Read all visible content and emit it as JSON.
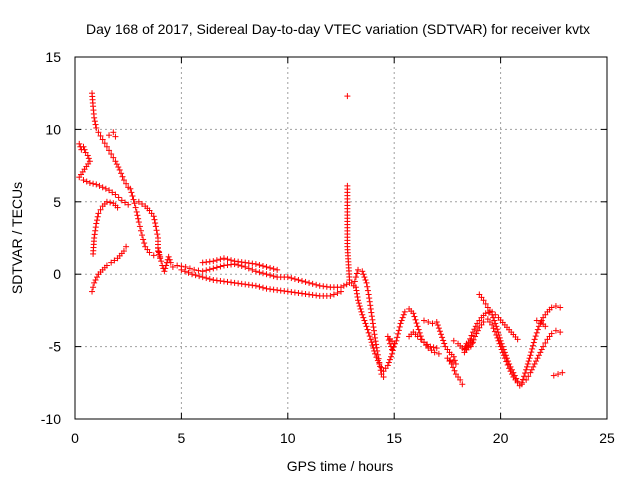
{
  "chart_data": {
    "type": "scatter",
    "title": "Day 168 of 2017, Sidereal Day-to-day VTEC variation (SDTVAR) for receiver kvtx",
    "xlabel": "GPS time / hours",
    "ylabel": "SDTVAR / TECUs",
    "xlim": [
      0,
      25
    ],
    "ylim": [
      -10,
      15
    ],
    "xticks": [
      "0",
      "5",
      "10",
      "15",
      "20",
      "25"
    ],
    "yticks": [
      "-10",
      "-5",
      "0",
      "5",
      "10",
      "15"
    ],
    "grid": true,
    "series": [
      {
        "name": "SDTVAR",
        "marker": "+",
        "color": "#ff0000",
        "points": [
          [
            0.2,
            9.0
          ],
          [
            0.3,
            8.6
          ],
          [
            0.4,
            8.8
          ],
          [
            0.5,
            8.4
          ],
          [
            0.6,
            8.2
          ],
          [
            0.7,
            7.8
          ],
          [
            0.2,
            6.7
          ],
          [
            0.4,
            6.5
          ],
          [
            0.7,
            6.3
          ],
          [
            1.0,
            6.2
          ],
          [
            1.3,
            6.0
          ],
          [
            1.6,
            5.8
          ],
          [
            1.9,
            5.5
          ],
          [
            2.2,
            5.1
          ],
          [
            2.5,
            4.8
          ],
          [
            0.8,
            12.5
          ],
          [
            0.85,
            11.6
          ],
          [
            0.9,
            10.8
          ],
          [
            1.0,
            10.1
          ],
          [
            1.1,
            9.8
          ],
          [
            1.3,
            9.3
          ],
          [
            1.5,
            8.8
          ],
          [
            1.7,
            8.3
          ],
          [
            1.9,
            7.8
          ],
          [
            2.1,
            7.2
          ],
          [
            2.3,
            6.5
          ],
          [
            2.5,
            6.0
          ],
          [
            1.6,
            9.6
          ],
          [
            1.8,
            9.8
          ],
          [
            1.9,
            9.5
          ],
          [
            0.85,
            1.4
          ],
          [
            0.9,
            2.5
          ],
          [
            1.0,
            3.5
          ],
          [
            1.1,
            4.2
          ],
          [
            1.3,
            4.7
          ],
          [
            1.5,
            5.0
          ],
          [
            1.8,
            4.9
          ],
          [
            2.0,
            4.6
          ],
          [
            0.8,
            -1.2
          ],
          [
            0.9,
            -0.6
          ],
          [
            1.1,
            0.0
          ],
          [
            1.3,
            0.3
          ],
          [
            1.5,
            0.6
          ],
          [
            1.7,
            0.8
          ],
          [
            2.0,
            1.1
          ],
          [
            2.3,
            1.6
          ],
          [
            2.4,
            1.9
          ],
          [
            2.6,
            5.9
          ],
          [
            2.7,
            5.4
          ],
          [
            2.8,
            4.9
          ],
          [
            2.9,
            4.3
          ],
          [
            3.0,
            3.6
          ],
          [
            3.1,
            3.0
          ],
          [
            3.2,
            2.4
          ],
          [
            3.3,
            1.9
          ],
          [
            3.5,
            1.5
          ],
          [
            3.7,
            1.3
          ],
          [
            3.0,
            5.0
          ],
          [
            3.3,
            4.7
          ],
          [
            3.5,
            4.4
          ],
          [
            3.7,
            4.0
          ],
          [
            3.8,
            3.3
          ],
          [
            3.9,
            2.5
          ],
          [
            3.9,
            1.6
          ],
          [
            4.0,
            1.1
          ],
          [
            3.9,
            1.8
          ],
          [
            4.0,
            1.2
          ],
          [
            4.1,
            0.6
          ],
          [
            4.2,
            0.2
          ],
          [
            4.4,
            1.2
          ],
          [
            4.5,
            0.8
          ],
          [
            4.6,
            0.5
          ],
          [
            4.8,
            0.6
          ],
          [
            5.2,
            0.5
          ],
          [
            5.6,
            0.3
          ],
          [
            6.0,
            0.2
          ],
          [
            6.5,
            0.4
          ],
          [
            7.0,
            0.6
          ],
          [
            7.5,
            0.7
          ],
          [
            8.0,
            0.5
          ],
          [
            8.5,
            0.2
          ],
          [
            9.0,
            0.0
          ],
          [
            9.5,
            -0.2
          ],
          [
            10.0,
            -0.2
          ],
          [
            10.5,
            -0.4
          ],
          [
            11.0,
            -0.6
          ],
          [
            11.5,
            -0.8
          ],
          [
            12.0,
            -0.9
          ],
          [
            12.5,
            -0.9
          ],
          [
            12.9,
            -0.6
          ],
          [
            5.0,
            0.3
          ],
          [
            5.5,
            0.0
          ],
          [
            6.0,
            -0.2
          ],
          [
            6.5,
            -0.4
          ],
          [
            7.0,
            -0.5
          ],
          [
            7.5,
            -0.6
          ],
          [
            8.0,
            -0.7
          ],
          [
            8.5,
            -0.8
          ],
          [
            9.0,
            -1.0
          ],
          [
            9.5,
            -1.1
          ],
          [
            10.0,
            -1.2
          ],
          [
            10.5,
            -1.3
          ],
          [
            11.0,
            -1.4
          ],
          [
            11.5,
            -1.5
          ],
          [
            12.0,
            -1.5
          ],
          [
            12.5,
            -1.2
          ],
          [
            6.0,
            0.8
          ],
          [
            6.5,
            0.9
          ],
          [
            7.0,
            1.1
          ],
          [
            7.5,
            0.9
          ],
          [
            8.0,
            0.8
          ],
          [
            8.5,
            0.7
          ],
          [
            9.0,
            0.5
          ],
          [
            9.5,
            0.3
          ],
          [
            12.8,
            12.3
          ],
          [
            12.8,
            6.1
          ],
          [
            12.8,
            4.3
          ],
          [
            12.8,
            1.9
          ],
          [
            12.9,
            -0.4
          ],
          [
            13.1,
            -0.8
          ],
          [
            13.2,
            -0.2
          ],
          [
            13.3,
            0.3
          ],
          [
            13.5,
            0.2
          ],
          [
            13.7,
            -0.6
          ],
          [
            13.8,
            -1.4
          ],
          [
            13.9,
            -2.4
          ],
          [
            14.0,
            -3.4
          ],
          [
            14.1,
            -4.4
          ],
          [
            14.2,
            -5.3
          ],
          [
            14.3,
            -6.1
          ],
          [
            14.4,
            -6.9
          ],
          [
            14.5,
            -7.1
          ],
          [
            13.2,
            -0.9
          ],
          [
            13.3,
            -1.8
          ],
          [
            13.5,
            -2.8
          ],
          [
            13.7,
            -3.6
          ],
          [
            13.9,
            -4.5
          ],
          [
            14.1,
            -5.5
          ],
          [
            14.3,
            -6.2
          ],
          [
            14.5,
            -6.7
          ],
          [
            14.7,
            -6.3
          ],
          [
            14.9,
            -5.5
          ],
          [
            15.0,
            -4.8
          ],
          [
            14.7,
            -4.3
          ],
          [
            14.8,
            -4.8
          ],
          [
            14.9,
            -5.2
          ],
          [
            15.1,
            -4.6
          ],
          [
            15.3,
            -3.4
          ],
          [
            15.5,
            -2.6
          ],
          [
            15.7,
            -2.4
          ],
          [
            15.9,
            -2.7
          ],
          [
            16.1,
            -3.6
          ],
          [
            16.3,
            -4.5
          ],
          [
            16.6,
            -5.1
          ],
          [
            16.9,
            -5.4
          ],
          [
            17.1,
            -5.5
          ],
          [
            15.7,
            -4.3
          ],
          [
            15.9,
            -4.0
          ],
          [
            16.1,
            -4.3
          ],
          [
            16.4,
            -4.7
          ],
          [
            16.7,
            -5.0
          ],
          [
            17.0,
            -5.1
          ],
          [
            16.4,
            -3.2
          ],
          [
            16.6,
            -3.3
          ],
          [
            16.8,
            -3.4
          ],
          [
            17.0,
            -3.3
          ],
          [
            17.4,
            -5.0
          ],
          [
            17.6,
            -5.4
          ],
          [
            17.8,
            -5.7
          ],
          [
            17.9,
            -6.2
          ],
          [
            17.5,
            -5.8
          ],
          [
            17.7,
            -6.2
          ],
          [
            17.9,
            -6.9
          ],
          [
            18.1,
            -7.3
          ],
          [
            18.2,
            -7.6
          ],
          [
            17.8,
            -4.6
          ],
          [
            18.0,
            -4.8
          ],
          [
            18.2,
            -5.1
          ],
          [
            18.3,
            -5.2
          ],
          [
            18.4,
            -4.8
          ],
          [
            18.6,
            -4.6
          ],
          [
            18.7,
            -4.7
          ],
          [
            18.3,
            -5.4
          ],
          [
            18.5,
            -4.7
          ],
          [
            18.7,
            -4.0
          ],
          [
            18.9,
            -3.4
          ],
          [
            19.1,
            -3.0
          ],
          [
            19.3,
            -2.7
          ],
          [
            19.6,
            -2.6
          ],
          [
            19.9,
            -3.0
          ],
          [
            20.2,
            -3.5
          ],
          [
            20.5,
            -4.0
          ],
          [
            20.8,
            -4.5
          ],
          [
            18.6,
            -5.0
          ],
          [
            18.8,
            -4.3
          ],
          [
            19.0,
            -3.7
          ],
          [
            19.2,
            -3.3
          ],
          [
            19.4,
            -3.1
          ],
          [
            19.6,
            -3.5
          ],
          [
            19.8,
            -4.2
          ],
          [
            20.0,
            -5.0
          ],
          [
            20.2,
            -5.8
          ],
          [
            20.4,
            -6.5
          ],
          [
            20.6,
            -7.1
          ],
          [
            20.8,
            -7.5
          ],
          [
            20.9,
            -7.7
          ],
          [
            19.0,
            -1.4
          ],
          [
            19.2,
            -1.8
          ],
          [
            19.4,
            -2.3
          ],
          [
            19.6,
            -2.8
          ],
          [
            19.8,
            -3.6
          ],
          [
            20.0,
            -4.6
          ],
          [
            20.2,
            -5.4
          ],
          [
            20.4,
            -6.2
          ],
          [
            20.6,
            -6.8
          ],
          [
            20.8,
            -7.4
          ],
          [
            21.0,
            -7.6
          ],
          [
            21.0,
            -7.5
          ],
          [
            21.2,
            -6.6
          ],
          [
            21.4,
            -5.6
          ],
          [
            21.6,
            -4.5
          ],
          [
            21.8,
            -3.6
          ],
          [
            22.0,
            -3.0
          ],
          [
            22.2,
            -2.6
          ],
          [
            22.4,
            -2.3
          ],
          [
            22.6,
            -2.2
          ],
          [
            22.8,
            -2.3
          ],
          [
            21.2,
            -7.3
          ],
          [
            21.4,
            -6.8
          ],
          [
            21.6,
            -6.2
          ],
          [
            21.8,
            -5.6
          ],
          [
            22.0,
            -5.0
          ],
          [
            22.2,
            -4.5
          ],
          [
            22.4,
            -4.1
          ],
          [
            22.6,
            -3.9
          ],
          [
            22.8,
            -4.0
          ],
          [
            21.7,
            -3.2
          ],
          [
            21.9,
            -3.3
          ],
          [
            22.1,
            -3.6
          ],
          [
            22.5,
            -7.0
          ],
          [
            22.7,
            -6.9
          ],
          [
            22.9,
            -6.8
          ]
        ]
      }
    ]
  }
}
